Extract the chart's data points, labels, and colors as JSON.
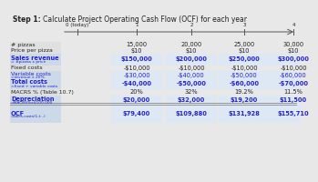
{
  "title_bold": "Step 1:",
  "title_rest": "   Calculate Project Operating Cash Flow (OCF) for each year",
  "timeline_labels": [
    "0 (today)",
    "1",
    "2",
    "3",
    "4"
  ],
  "row_labels": [
    "# pizzas",
    "Price per pizza",
    "Sales revenue",
    "= #pizzas x price",
    "Fixed costs",
    "Variable costs",
    "=revenue x 20%",
    "Total costs",
    "=fixed + variable costs",
    "MACRS % (Table 10.7)",
    "Depreciation",
    "=MACRS%x$100,000",
    "OCF",
    "=sales-costs(1-t...)"
  ],
  "col1": [
    "15,000",
    "$10",
    "$150,000",
    "",
    "-$10,000",
    "-$30,000",
    "",
    "-$40,000",
    "",
    "20%",
    "$20,000",
    "",
    "$79,400",
    ""
  ],
  "col2": [
    "20,000",
    "$10",
    "$200,000",
    "",
    "-$10,000",
    "-$40,000",
    "",
    "-$50,000",
    "",
    "32%",
    "$32,000",
    "",
    "$109,880",
    ""
  ],
  "col3": [
    "25,000",
    "$10",
    "$250,000",
    "",
    "-$10,000",
    "-$50,000",
    "",
    "-$60,000",
    "",
    "19.2%",
    "$19,200",
    "",
    "$131,928",
    ""
  ],
  "col4": [
    "30,000",
    "$10",
    "$300,000",
    "",
    "-$10,000",
    "-$60,000",
    "",
    "-$70,000",
    "",
    "11.5%",
    "$11,500",
    "",
    "$155,710",
    ""
  ],
  "bg_color": "#e8e8e8",
  "white": "#ffffff",
  "blue": "#2222cc",
  "black": "#222222",
  "gray_text": "#888888"
}
